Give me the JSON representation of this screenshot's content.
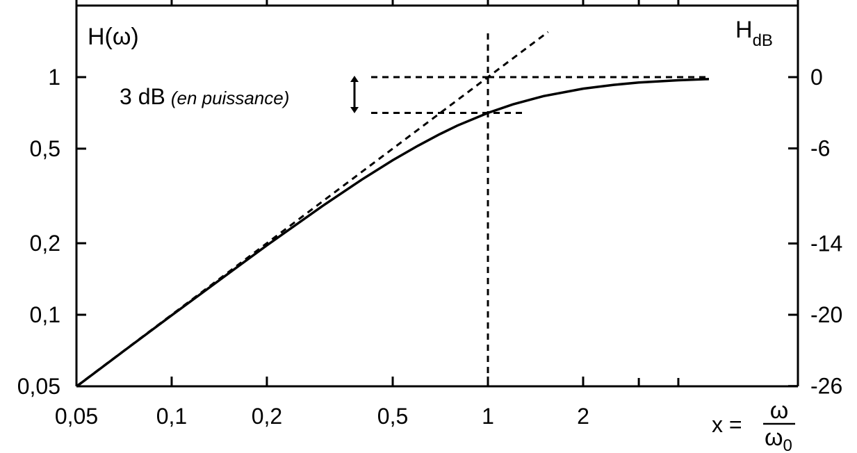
{
  "chart_data": {
    "type": "line",
    "x_scale": "log",
    "y_scale": "log",
    "xlim": [
      0.05,
      5
    ],
    "ylim": [
      0.05,
      2
    ],
    "x_ticks": [
      0.05,
      0.1,
      0.2,
      0.5,
      1,
      2
    ],
    "x_tick_labels": [
      "0,05",
      "0,1",
      "0,2",
      "0,5",
      "1",
      "2"
    ],
    "y_ticks": [
      0.05,
      0.1,
      0.2,
      0.5,
      1
    ],
    "y_tick_labels": [
      "0,05",
      "0,1",
      "0,2",
      "0,5",
      "1"
    ],
    "y2_ticks": [
      0,
      -6,
      -14,
      -20,
      -26
    ],
    "y2_tick_labels": [
      "0",
      "-6",
      "-14",
      "-20",
      "-26"
    ],
    "ylabel": "H(ω)",
    "y2label_main": "H",
    "y2label_sub": "dB",
    "xlabel_prefix": "x =",
    "xlabel_num": "ω",
    "xlabel_den_main": "ω",
    "xlabel_den_sub": "0",
    "annotation_main": "3 dB",
    "annotation_italic": "(en puissance)",
    "series": [
      {
        "style": "solid",
        "x": [
          0.05,
          0.07,
          0.1,
          0.15,
          0.2,
          0.3,
          0.4,
          0.5,
          0.6,
          0.7,
          0.8,
          1.0,
          1.2,
          1.5,
          2.0,
          2.5,
          3.0,
          4.0,
          5.0
        ],
        "y": [
          0.0499,
          0.0698,
          0.0995,
          0.148,
          0.196,
          0.287,
          0.371,
          0.447,
          0.514,
          0.573,
          0.625,
          0.707,
          0.768,
          0.832,
          0.894,
          0.928,
          0.949,
          0.97,
          0.981
        ]
      },
      {
        "style": "dashed",
        "x": [
          0.05,
          1.55
        ],
        "y": [
          0.05,
          1.55
        ]
      },
      {
        "style": "dashed",
        "x": [
          1,
          5
        ],
        "y": [
          1,
          1
        ]
      }
    ],
    "reference_lines": {
      "vertical_x": 1,
      "minus3db_level": 0.707,
      "minus3db_x_range": [
        0.4,
        1.3
      ],
      "zero_db_x_start": 0.4
    },
    "grid": false,
    "legend": "none"
  }
}
